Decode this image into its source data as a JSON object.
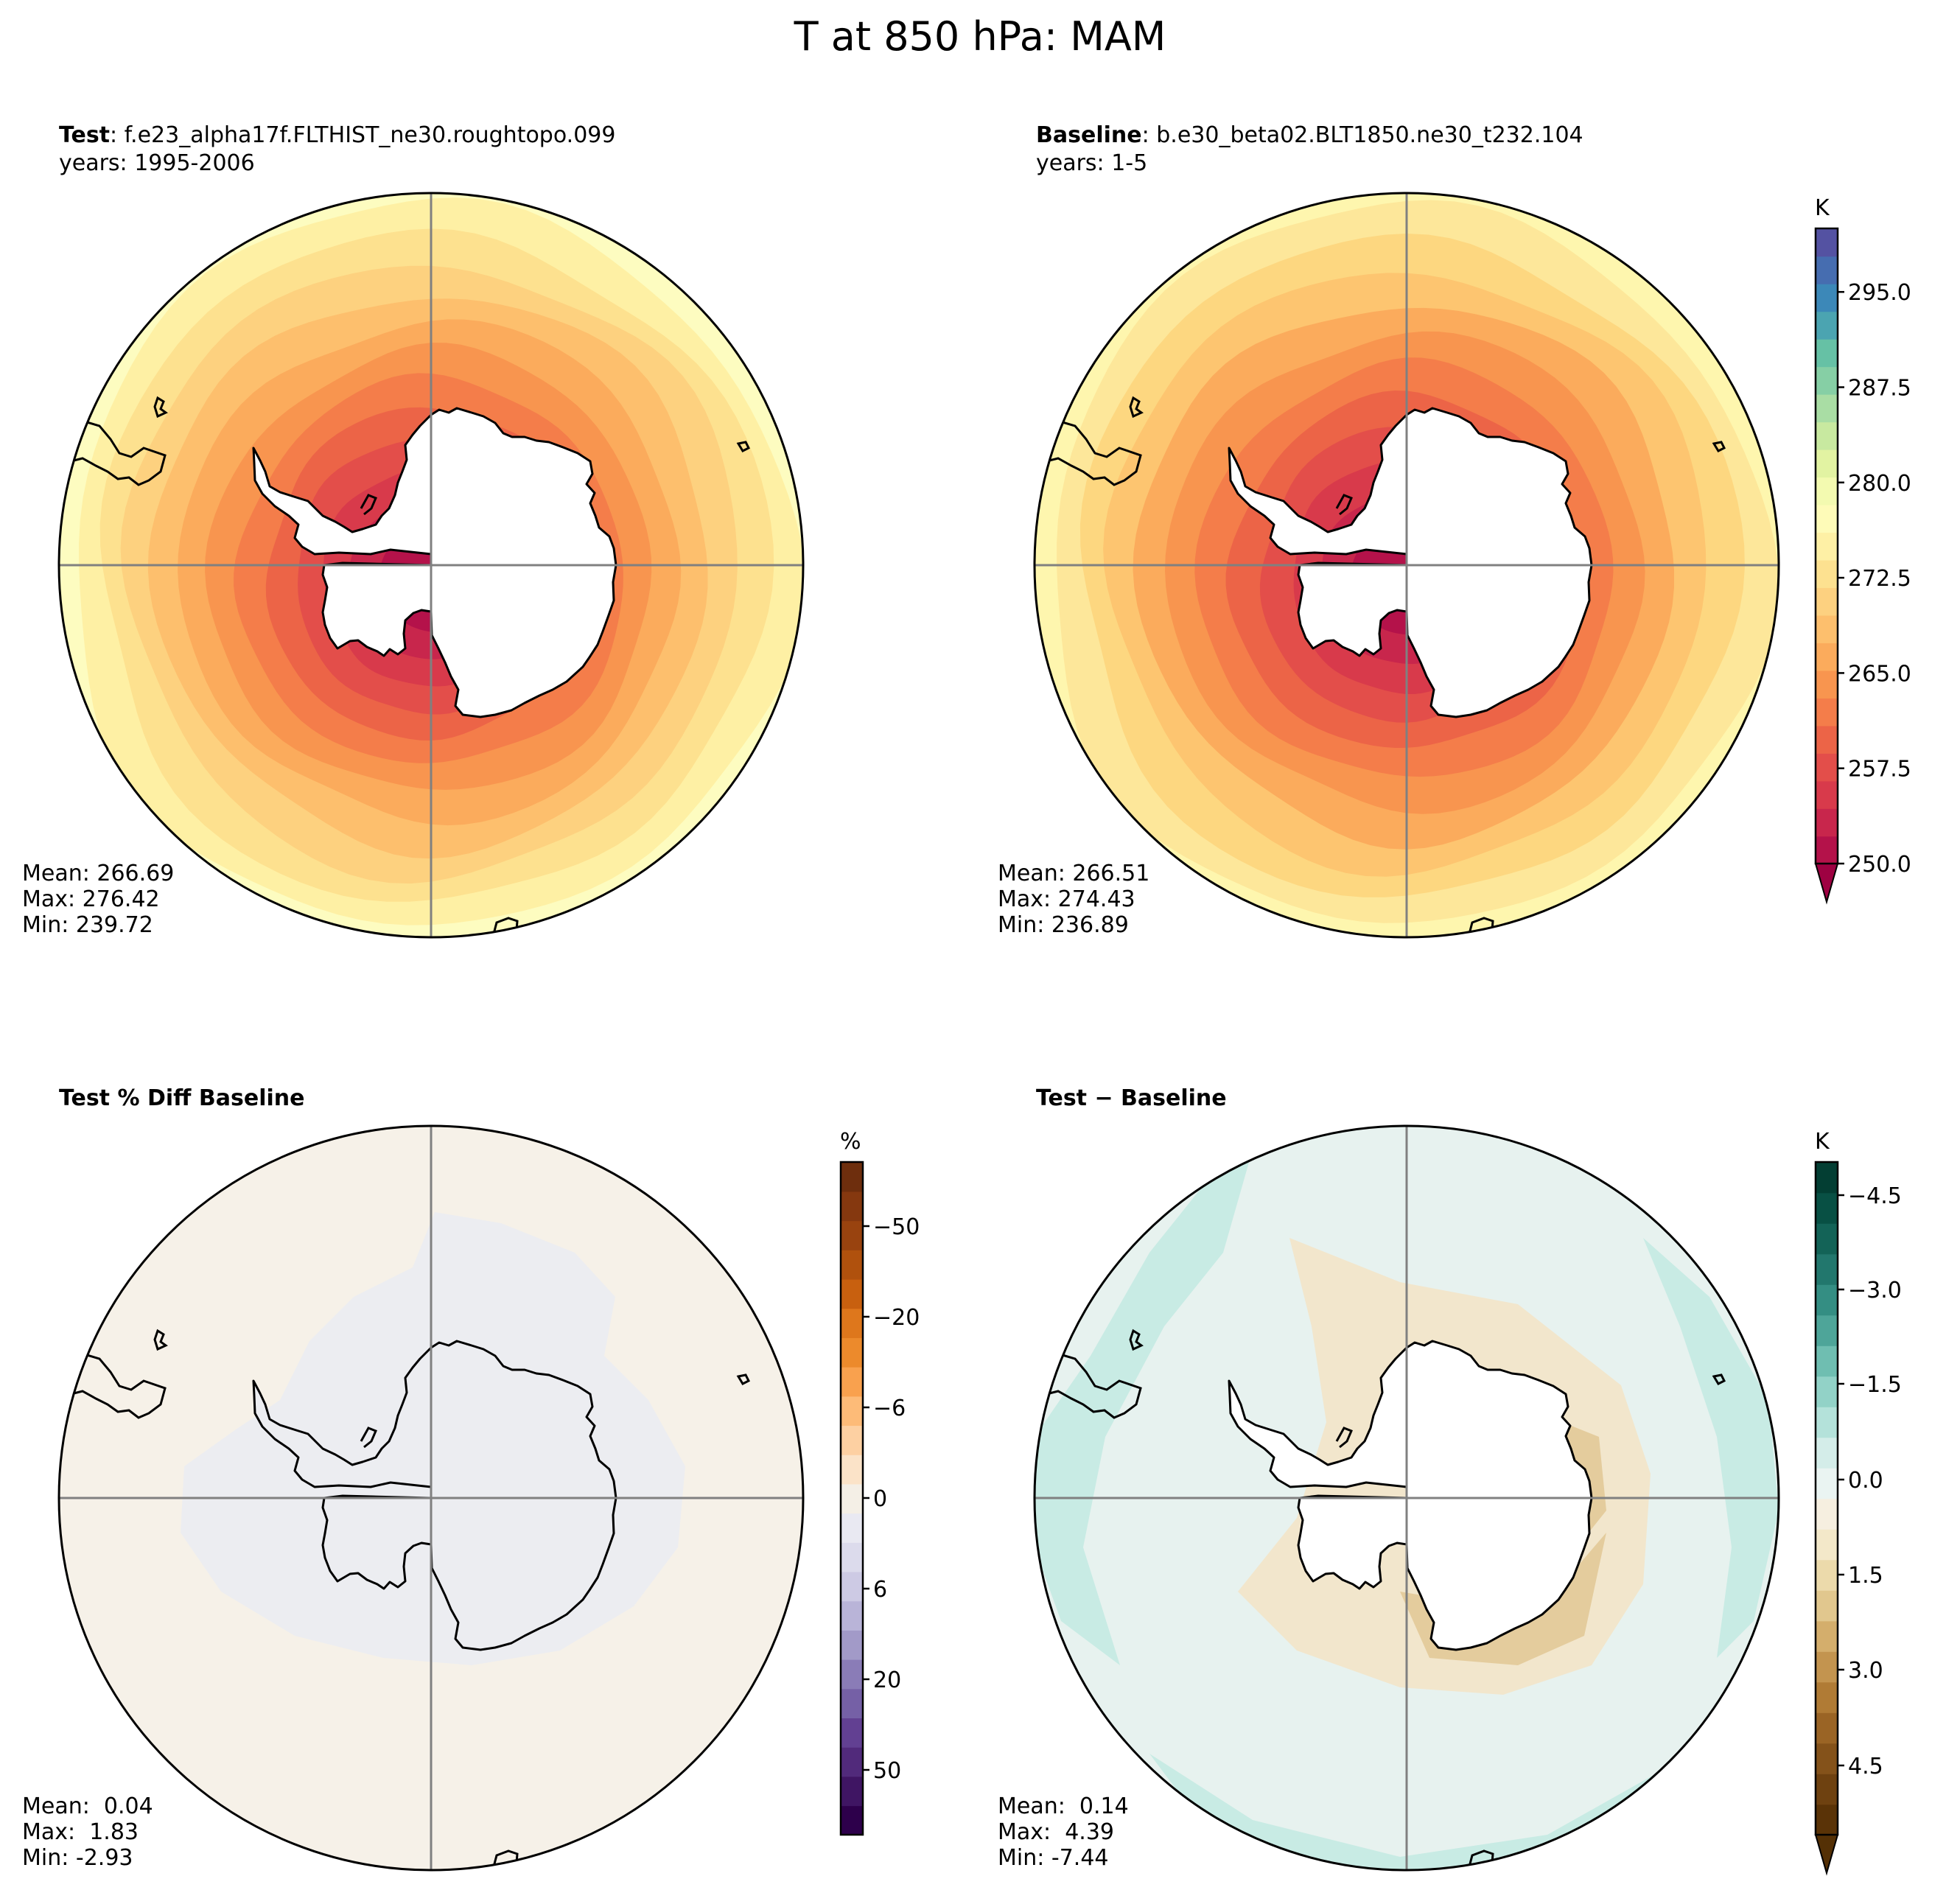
{
  "suptitle": "T at 850 hPa: MAM",
  "panels": {
    "test": {
      "title_bold": "Test",
      "title_rest": ": f.e23_alpha17f.FLTHIST_ne30.roughtopo.099",
      "years": "years: 1995-2006",
      "stats": {
        "mean": "Mean: 266.69",
        "max": "Max: 276.42",
        "min": "Min: 239.72"
      }
    },
    "baseline": {
      "title_bold": "Baseline",
      "title_rest": ": b.e30_beta02.BLT1850.ne30_t232.104",
      "years": "years: 1-5",
      "stats": {
        "mean": "Mean: 266.51",
        "max": "Max: 274.43",
        "min": "Min: 236.89"
      }
    },
    "pctdiff": {
      "title_bold": "Test % Diff Baseline",
      "stats": {
        "mean": "Mean:  0.04",
        "max": "Max:  1.83",
        "min": "Min: -2.93"
      }
    },
    "diff": {
      "title_bold": "Test − Baseline",
      "stats": {
        "mean": "Mean:  0.14",
        "max": "Max:  4.39",
        "min": "Min: -7.44"
      }
    }
  },
  "chart_data": [
    {
      "type": "heatmap",
      "name": "test",
      "projection": "south polar stereographic",
      "variable": "T",
      "level": "850 hPa",
      "season": "MAM",
      "units": "K",
      "mean": 266.69,
      "max": 276.42,
      "min": 239.72,
      "contour_levels_outer_to_inner": [
        275,
        272.5,
        270,
        267.5,
        265,
        262.5,
        260,
        257.5,
        255,
        252.5,
        250
      ]
    },
    {
      "type": "heatmap",
      "name": "baseline",
      "projection": "south polar stereographic",
      "units": "K",
      "mean": 266.51,
      "max": 274.43,
      "min": 236.89,
      "contour_levels_outer_to_inner": [
        272.5,
        270,
        267.5,
        265,
        262.5,
        260,
        257.5,
        255,
        252.5,
        250
      ]
    },
    {
      "type": "heatmap",
      "name": "pct_diff",
      "units": "%",
      "mean": 0.04,
      "max": 1.83,
      "min": -2.93
    },
    {
      "type": "heatmap",
      "name": "diff",
      "units": "K",
      "mean": 0.14,
      "max": 4.39,
      "min": -7.44
    }
  ],
  "colorbars": {
    "temp": {
      "units": "K",
      "range": [
        250,
        300
      ],
      "tick_values": [
        250,
        257.5,
        265,
        272.5,
        280,
        287.5,
        295
      ],
      "tick_labels": [
        "250.0",
        "257.5",
        "265.0",
        "272.5",
        "280.0",
        "287.5",
        "295.0"
      ],
      "colors": [
        "#b4124a",
        "#c8264c",
        "#d83a4b",
        "#e34e4a",
        "#ec6447",
        "#f47d4a",
        "#f8954f",
        "#fbab5c",
        "#fdbf6d",
        "#fdd180",
        "#fde190",
        "#fef0a5",
        "#fefbb8",
        "#f3fab0",
        "#e2f3a2",
        "#c8e9a0",
        "#a9dda4",
        "#86cfa5",
        "#66c1a5",
        "#4ba4b1",
        "#3c88b8",
        "#466db0",
        "#5452a2"
      ],
      "under_color": "#9e0142"
    },
    "pct": {
      "units": "%",
      "tick_labels": [
        "−50",
        "−20",
        "−6",
        "0",
        "6",
        "20",
        "50"
      ],
      "colors": [
        "#2d004b",
        "#3f1563",
        "#512a7b",
        "#624092",
        "#7560a6",
        "#8a7cb7",
        "#a29ac8",
        "#b9b4d8",
        "#cdcae4",
        "#dcdbec",
        "#e9e9f2",
        "#f4efe6",
        "#fbe3c8",
        "#fdd0a2",
        "#fdbb78",
        "#f9a14e",
        "#ec8a2c",
        "#de771c",
        "#c8600f",
        "#b0510d",
        "#99430f",
        "#85380f",
        "#6e2e0d"
      ]
    },
    "diff": {
      "units": "K",
      "tick_labels": [
        "−4.5",
        "−3.0",
        "−1.5",
        "0.0",
        "1.5",
        "3.0",
        "4.5"
      ],
      "colors": [
        "#5a3307",
        "#6e4110",
        "#84521a",
        "#9a6425",
        "#b07b35",
        "#c3944f",
        "#d4ae6c",
        "#e1c78e",
        "#ecdaab",
        "#f3e8c9",
        "#f6efe0",
        "#eaf4f2",
        "#d4ede9",
        "#b4e2da",
        "#92d2c7",
        "#6fbeb1",
        "#4ea599",
        "#348e83",
        "#22776d",
        "#136357",
        "#085044",
        "#033e33"
      ],
      "under_color": "#543005"
    }
  },
  "map_fills": {
    "test_rings": [
      "#fdfcc0",
      "#fef0a4",
      "#fde18f",
      "#fdd17f",
      "#fdbf6d",
      "#fbab5c",
      "#f8954f",
      "#f47d4a",
      "#ec6447",
      "#e34e4a",
      "#d83a4b",
      "#c8264c",
      "#b4124a"
    ],
    "baseline_rings": [
      "#fef6ae",
      "#fde79a",
      "#fdd780",
      "#fdc570",
      "#fbab5c",
      "#f8954f",
      "#f47d4a",
      "#ec6447",
      "#e34e4a",
      "#d83a4b",
      "#c8264c",
      "#b4124a"
    ],
    "pct_base": "#f6f1e8",
    "pct_neg": "#ecedf1",
    "diff_base": "#e7f2ef",
    "diff_green": "#c8ebe4",
    "diff_tan": "#f2e6cc",
    "diff_dtan": "#e4cc9d",
    "ice": "#ffffff",
    "grid": "#808080"
  }
}
